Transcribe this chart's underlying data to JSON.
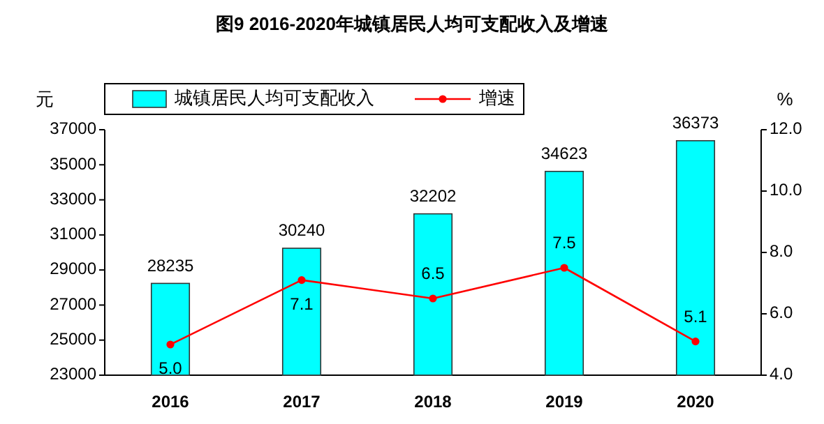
{
  "chart_data": {
    "type": "bar",
    "title": "图9 2016-2020年城镇居民人均可支配收入及增速",
    "categories": [
      "2016",
      "2017",
      "2018",
      "2019",
      "2020"
    ],
    "series": [
      {
        "name": "城镇居民人均可支配收入",
        "color": "#00ffff",
        "values": [
          28235,
          30240,
          32202,
          34623,
          36373
        ],
        "value_labels": [
          "28235",
          "30240",
          "32202",
          "34623",
          "36373"
        ]
      },
      {
        "name": "增速",
        "type": "line",
        "axis": "y2",
        "color": "#ff0000",
        "marker": "circle",
        "values": [
          5.0,
          7.1,
          6.5,
          7.5,
          5.1
        ],
        "value_labels": [
          "5.0",
          "7.1",
          "6.5",
          "7.5",
          "5.1"
        ]
      }
    ],
    "ylabel": "元",
    "y2label": "%",
    "ylim": [
      23000,
      37000
    ],
    "yticks": [
      23000,
      25000,
      27000,
      29000,
      31000,
      33000,
      35000,
      37000
    ],
    "y2lim": [
      4,
      12
    ],
    "y2ticks": [
      {
        "value": 4,
        "label": "4.0"
      },
      {
        "value": 6,
        "label": "6.0"
      },
      {
        "value": 8,
        "label": "8.0"
      },
      {
        "value": 10,
        "label": "10.0"
      },
      {
        "value": 12,
        "label": "12.0"
      }
    ],
    "legend": "top"
  }
}
